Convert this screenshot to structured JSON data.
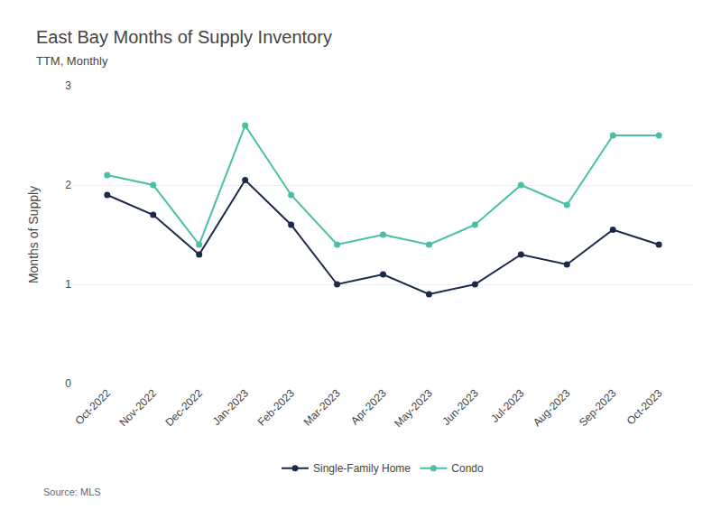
{
  "chart_data": {
    "type": "line",
    "title": "East Bay Months of Supply Inventory",
    "subtitle": "TTM, Monthly",
    "source": "Source: MLS",
    "ylabel": "Months of Supply",
    "categories": [
      "Oct-2022",
      "Nov-2022",
      "Dec-2022",
      "Jan-2023",
      "Feb-2023",
      "Mar-2023",
      "Apr-2023",
      "May-2023",
      "Jun-2023",
      "Jul-2023",
      "Aug-2023",
      "Sep-2023",
      "Oct-2023"
    ],
    "series": [
      {
        "name": "Single-Family Home",
        "color": "#1b2a4a",
        "marker": "circle",
        "values": [
          1.9,
          1.7,
          1.3,
          2.05,
          1.6,
          1.0,
          1.1,
          0.9,
          1.0,
          1.3,
          1.2,
          1.55,
          1.4
        ]
      },
      {
        "name": "Condo",
        "color": "#4abfa5",
        "marker": "circle",
        "values": [
          2.1,
          2.0,
          1.4,
          2.6,
          1.9,
          1.4,
          1.5,
          1.4,
          1.6,
          2.0,
          1.8,
          2.5,
          2.5
        ]
      }
    ],
    "ylim": [
      0,
      3
    ],
    "yticks": [
      0,
      1,
      2,
      3
    ],
    "grid": true,
    "legend": "bottom"
  }
}
